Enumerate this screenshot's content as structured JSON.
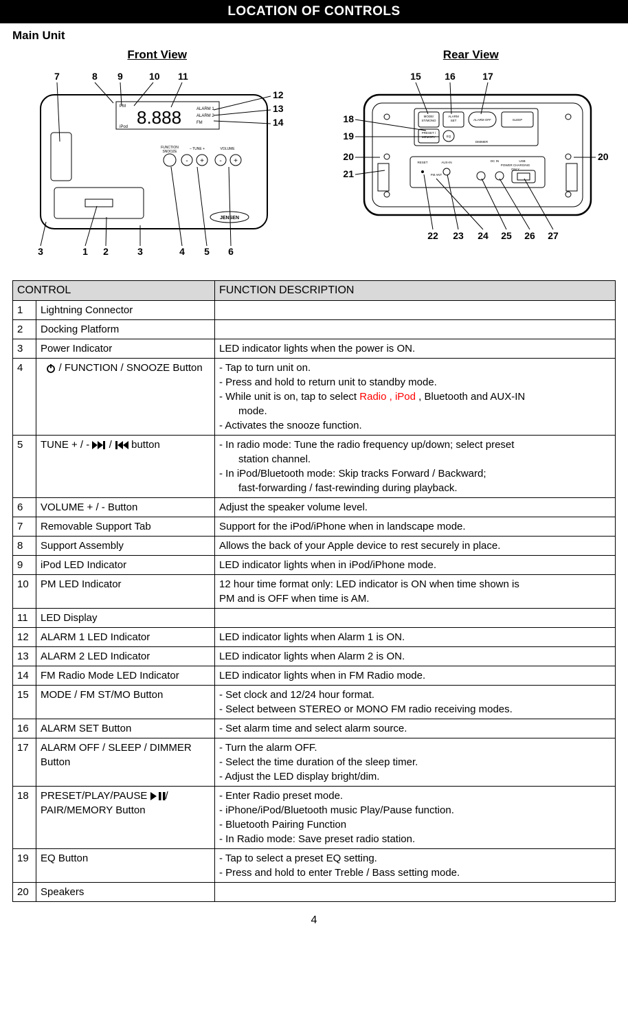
{
  "header": {
    "title": "LOCATION OF CONTROLS"
  },
  "subtitle": "Main Unit",
  "views": {
    "front": {
      "title": "Front View"
    },
    "rear": {
      "title": "Rear View"
    }
  },
  "table": {
    "headers": {
      "control": "CONTROL",
      "desc": "FUNCTION DESCRIPTION"
    },
    "rows": [
      {
        "num": "1",
        "name": "Lightning Connector",
        "desc": []
      },
      {
        "num": "2",
        "name": "Docking Platform",
        "desc": []
      },
      {
        "num": "3",
        "name": "Power Indicator",
        "desc": [
          "LED indicator lights when the power is ON."
        ]
      },
      {
        "num": "4",
        "name_prefix": "",
        "name_icon": "power",
        "name_suffix": " / FUNCTION / SNOOZE Button",
        "desc": [
          "- Tap to turn unit on.",
          "- Press and hold to return unit to standby mode.",
          {
            "type": "mixed",
            "parts": [
              {
                "t": "- While unit is on, tap to select "
              },
              {
                "t": "Radio , iPod ",
                "red": true
              },
              {
                "t": ", Bluetooth and AUX-IN"
              }
            ]
          },
          {
            "type": "indent",
            "t": "mode."
          },
          "- Activates the snooze function."
        ]
      },
      {
        "num": "5",
        "name_html": "TUNE + / -  {FWD}  /  {BACK}  button",
        "desc": [
          {
            "type": "justify",
            "t": "-  In  radio  mode:  Tune  the  radio  frequency  up/down;  select  preset"
          },
          {
            "type": "indent",
            "t": "station channel."
          },
          {
            "type": "justify",
            "t": "-   In   iPod/Bluetooth   mode:   Skip   tracks   Forward   /   Backward;"
          },
          {
            "type": "indent",
            "t": "fast-forwarding / fast-rewinding during playback."
          }
        ]
      },
      {
        "num": "6",
        "name": "VOLUME + / - Button",
        "desc": [
          "Adjust the speaker volume level."
        ]
      },
      {
        "num": "7",
        "name": "Removable Support Tab",
        "desc": [
          "Support for the iPod/iPhone when in landscape mode."
        ]
      },
      {
        "num": "8",
        "name": "Support Assembly",
        "desc": [
          "Allows the back of your Apple device to rest securely in place."
        ]
      },
      {
        "num": "9",
        "name": "iPod LED Indicator",
        "desc": [
          "LED indicator lights when in iPod/iPhone mode."
        ]
      },
      {
        "num": "10",
        "name": "PM LED Indicator",
        "desc": [
          {
            "type": "justify",
            "t": "12 hour time format only: LED indicator is ON when time shown is"
          },
          "PM and is OFF when time is AM."
        ]
      },
      {
        "num": "11",
        "name": "LED Display",
        "desc": []
      },
      {
        "num": "12",
        "name": "ALARM 1 LED Indicator",
        "desc": [
          "LED indicator lights when Alarm 1 is ON."
        ]
      },
      {
        "num": "13",
        "name": "ALARM 2 LED Indicator",
        "desc": [
          "LED indicator lights when Alarm 2 is ON."
        ]
      },
      {
        "num": "14",
        "name": "FM   Radio   Mode   LED Indicator",
        "desc": [
          "LED indicator lights when in FM Radio mode."
        ]
      },
      {
        "num": "15",
        "name": "MODE / FM ST/MO Button",
        "desc": [
          "- Set clock and 12/24 hour format.",
          "- Select between STEREO or MONO FM radio receiving modes."
        ]
      },
      {
        "num": "16",
        "name": "ALARM SET Button",
        "desc": [
          "- Set alarm time and select alarm source."
        ]
      },
      {
        "num": "17",
        "name": "ALARM  OFF  /  SLEEP  / DIMMER Button",
        "desc": [
          "- Turn the alarm OFF.",
          "- Select the time duration of the sleep timer.",
          "- Adjust the LED display bright/dim."
        ]
      },
      {
        "num": "18",
        "name_html": "PRESET/PLAY/PAUSE {PLAYPAUSE}/ PAIR/MEMORY Button",
        "desc": [
          "- Enter Radio preset mode.",
          "- iPhone/iPod/Bluetooth music Play/Pause function.",
          "- Bluetooth Pairing Function",
          "- In Radio mode: Save preset radio station."
        ]
      },
      {
        "num": "19",
        "name": "EQ Button",
        "desc": [
          "- Tap to select a preset EQ setting.",
          "- Press and hold to enter Treble / Bass setting mode."
        ]
      },
      {
        "num": "20",
        "name": "Speakers",
        "desc": []
      }
    ]
  },
  "diagrams": {
    "front": {
      "top_labels": [
        "7",
        "8",
        "9",
        "10",
        "11"
      ],
      "right_labels": [
        "12",
        "13",
        "14"
      ],
      "bottom_labels": [
        "3",
        "1",
        "2",
        "3",
        "4",
        "5",
        "6"
      ],
      "button_labels": [
        "FUNCTION",
        "SNOOZE",
        "– TUNE +",
        "VOLUME"
      ],
      "display_labels": [
        "PM",
        "iPod",
        "ALARM 1",
        "ALARM 2",
        "FM"
      ],
      "brand": "JENSEN",
      "seven_seg": "8.888"
    },
    "rear": {
      "top_labels": [
        "15",
        "16",
        "17"
      ],
      "left_labels": [
        "18",
        "19"
      ],
      "side_labels_left": [
        "20",
        "21"
      ],
      "side_labels_right": [
        "20"
      ],
      "bottom_labels": [
        "22",
        "23",
        "24",
        "25",
        "26",
        "27"
      ],
      "button_text": {
        "b15a": "MODE/",
        "b15b": "ST/MONO",
        "b16a": "ALARM",
        "b16b": "SET",
        "b17": "ALARM OFF",
        "sleep": "SLEEP",
        "b18a": "PRESET /",
        "b18b": "MEMORY",
        "play": "▶ / II",
        "b19": "EQ",
        "dimmer": "DIMMER",
        "reset": "RESET",
        "auxin": "AUX-IN",
        "dc": "DC IN",
        "usb": "USB",
        "usb2": "POWER CHARGING",
        "usb3": "ONLY",
        "fm": "FM ANT"
      }
    }
  },
  "page_number": "4",
  "colors": {
    "header_bg": "#000000",
    "header_fg": "#ffffff",
    "th_bg": "#d9d9d9",
    "border": "#000000",
    "red": "#ff0000",
    "bg": "#ffffff",
    "fg": "#000000"
  }
}
